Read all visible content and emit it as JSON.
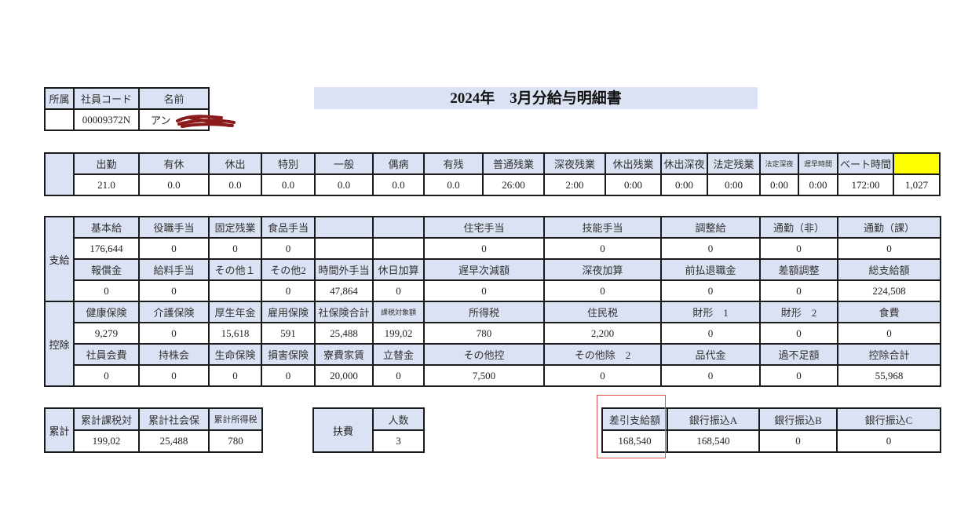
{
  "title": "2024年　3月分給与明細書",
  "employee": {
    "headers": [
      "所属",
      "社員コード",
      "名前"
    ],
    "values": [
      "",
      "00009372N",
      "アン"
    ]
  },
  "attendance": {
    "headers": [
      "出勤",
      "有休",
      "休出",
      "特別",
      "一般",
      "偶病",
      "有残",
      "普通残業",
      "深夜残業",
      "休出残業",
      "休出深夜",
      "法定残業",
      "法定深夜",
      "遅早時間",
      "ベート時間",
      ""
    ],
    "values": [
      "21.0",
      "0.0",
      "0.0",
      "0.0",
      "0.0",
      "0.0",
      "0.0",
      "26:00",
      "2:00",
      "0:00",
      "0:00",
      "0:00",
      "0:00",
      "0:00",
      "172:00",
      "1,027"
    ]
  },
  "earnings": {
    "label": "支給",
    "rows": [
      {
        "headers": [
          "基本給",
          "役職手当",
          "固定残業",
          "食品手当",
          "",
          "",
          "住宅手当",
          "技能手当",
          "調整給",
          "通勤（非）",
          "通勤（課）"
        ],
        "values": [
          "176,644",
          "0",
          "0",
          "0",
          "",
          "",
          "0",
          "0",
          "0",
          "0",
          "0"
        ]
      },
      {
        "headers": [
          "報償金",
          "給料手当",
          "その他１",
          "その他2",
          "時間外手当",
          "休日加算",
          "遅早次減額",
          "深夜加算",
          "前払退職金",
          "差額調整",
          "総支給額"
        ],
        "values": [
          "0",
          "0",
          "",
          "0",
          "47,864",
          "0",
          "0",
          "0",
          "0",
          "0",
          "224,508"
        ]
      }
    ]
  },
  "deductions": {
    "label": "控除",
    "rows": [
      {
        "headers": [
          "健康保険",
          "介護保険",
          "厚生年金",
          "雇用保険",
          "社保険合計",
          "課税対象額",
          "所得税",
          "住民税",
          "財形　1",
          "財形　2",
          "食費"
        ],
        "values": [
          "9,279",
          "0",
          "15,618",
          "591",
          "25,488",
          "199,02",
          "780",
          "2,200",
          "0",
          "0",
          "0"
        ]
      },
      {
        "headers": [
          "社員会費",
          "持株会",
          "生命保険",
          "損害保険",
          "寮費家賃",
          "立替金",
          "その他控",
          "その他除　2",
          "品代金",
          "過不足額",
          "控除合計"
        ],
        "values": [
          "0",
          "0",
          "0",
          "0",
          "20,000",
          "0",
          "7,500",
          "0",
          "0",
          "0",
          "55,968"
        ]
      }
    ]
  },
  "cumulative": {
    "label": "累計",
    "headers": [
      "累計課税対",
      "累計社会保",
      "累計所得税"
    ],
    "values": [
      "199,02",
      "25,488",
      "780"
    ]
  },
  "dependents": {
    "label": "扶費",
    "header": "人数",
    "value": "3"
  },
  "payment": {
    "headers": [
      "差引支給額",
      "銀行振込A",
      "銀行振込B",
      "銀行振込C"
    ],
    "values": [
      "168,540",
      "168,540",
      "0",
      "0"
    ]
  },
  "colors": {
    "header_bg": "#dbe2f3",
    "highlight_cell": "#ffff00",
    "annotation_box": "#e05050",
    "redaction": "#8b1a1a"
  }
}
